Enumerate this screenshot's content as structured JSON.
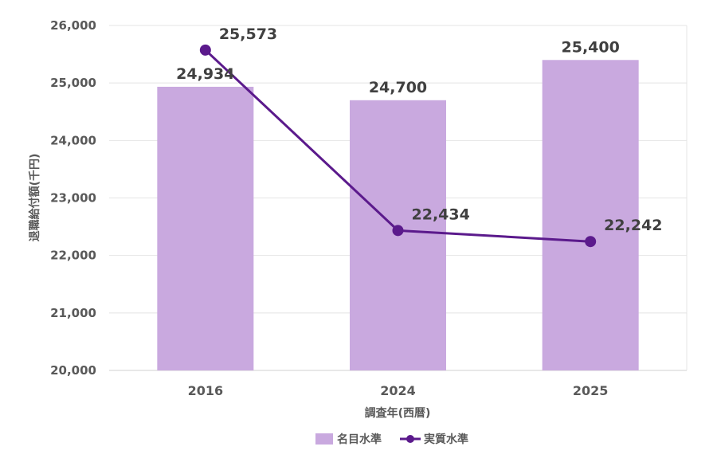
{
  "chart_data": {
    "type": "bar+line",
    "categories": [
      "2016",
      "2024",
      "2025"
    ],
    "series": [
      {
        "name": "名目水準",
        "type": "bar",
        "values": [
          24934,
          24700,
          25400
        ],
        "labels": [
          "24,934",
          "24,700",
          "25,400"
        ],
        "color": "#c9a9df"
      },
      {
        "name": "実質水準",
        "type": "line",
        "values": [
          25573,
          22434,
          22242
        ],
        "labels": [
          "25,573",
          "22,434",
          "22,242"
        ],
        "color": "#5b1a8c"
      }
    ],
    "xlabel": "調査年(西暦)",
    "ylabel": "退職給付額(千円)",
    "ylim": [
      20000,
      26000
    ],
    "yticks": [
      20000,
      21000,
      22000,
      23000,
      24000,
      25000,
      26000
    ],
    "ytick_labels": [
      "20,000",
      "21,000",
      "22,000",
      "23,000",
      "24,000",
      "25,000",
      "26,000"
    ],
    "grid": true,
    "legend_position": "bottom"
  }
}
